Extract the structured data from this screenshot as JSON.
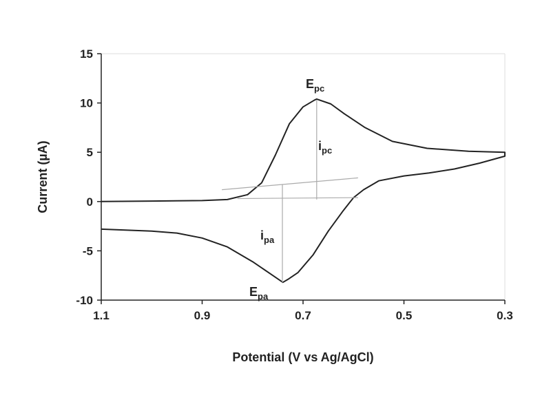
{
  "chart_data": {
    "type": "line",
    "xlabel": "Potential (V vs Ag/AgCl)",
    "ylabel": "Current (µA)",
    "xlim": [
      1.1,
      0.3
    ],
    "xticks": [
      1.1,
      0.9,
      0.7,
      0.5,
      0.3
    ],
    "ylim": [
      -10,
      15
    ],
    "yticks": [
      -10,
      -5,
      0,
      5,
      10,
      15
    ],
    "series": [
      {
        "color": "#222222",
        "x": [
          1.1,
          1.0,
          0.9,
          0.85,
          0.81,
          0.782,
          0.755,
          0.727,
          0.7,
          0.677,
          0.673,
          0.645,
          0.618,
          0.577,
          0.523,
          0.454,
          0.372,
          0.3,
          0.3,
          0.35,
          0.4,
          0.45,
          0.5,
          0.55,
          0.58,
          0.6,
          0.62,
          0.65,
          0.68,
          0.71,
          0.73,
          0.74,
          0.76,
          0.8,
          0.85,
          0.9,
          0.95,
          1.0,
          1.1
        ],
        "values": [
          0,
          0.05,
          0.1,
          0.2,
          0.7,
          1.9,
          4.7,
          7.9,
          9.6,
          10.3,
          10.4,
          9.9,
          8.9,
          7.5,
          6.1,
          5.4,
          5.1,
          5.0,
          4.6,
          3.9,
          3.3,
          2.9,
          2.6,
          2.1,
          1.2,
          0.4,
          -0.9,
          -3.0,
          -5.4,
          -7.2,
          -7.9,
          -8.2,
          -7.5,
          -6.1,
          -4.6,
          -3.7,
          -3.2,
          -3.0,
          -2.8
        ]
      },
      {
        "color": "#aaaaaa",
        "x": [
          0.861,
          0.591
        ],
        "values": [
          1.2,
          2.4
        ]
      },
      {
        "color": "#aaaaaa",
        "x": [
          0.83,
          0.591
        ],
        "values": [
          0.3,
          0.4
        ]
      },
      {
        "color": "#aaaaaa",
        "x": [
          0.673,
          0.673
        ],
        "values": [
          10.3,
          0.2
        ]
      },
      {
        "color": "#aaaaaa",
        "x": [
          0.741,
          0.741
        ],
        "values": [
          1.7,
          -8.2
        ]
      }
    ],
    "annotations": [
      {
        "text": "E",
        "subscript": "pc"
      },
      {
        "text": "i",
        "subscript": "pc"
      },
      {
        "text": "i",
        "subscript": "pa"
      },
      {
        "text": "E",
        "subscript": "pa"
      }
    ]
  }
}
